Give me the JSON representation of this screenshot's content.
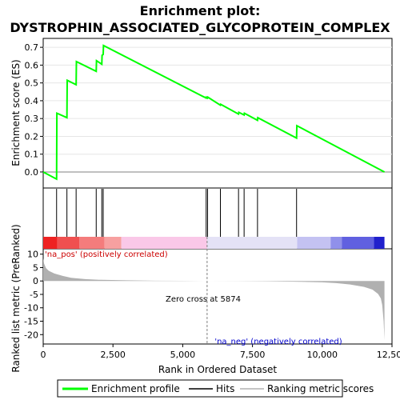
{
  "title_line1": "Enrichment plot:",
  "title_line2": "DYSTROPHIN_ASSOCIATED_GLYCOPROTEIN_COMPLEX",
  "colors": {
    "enrichment_line": "#00ff00",
    "hit_line": "#000000",
    "metric_fill": "#b0b0b0",
    "pos_label": "#cc0000",
    "neg_label": "#0000cc"
  },
  "legend": {
    "enrichment_profile": "Enrichment profile",
    "hits": "Hits",
    "ranking_metric": "Ranking metric scores"
  },
  "chart_data": [
    {
      "type": "line",
      "name": "enrichment-score-panel",
      "ylabel": "Enrichment score (ES)",
      "xlim": [
        0,
        12500
      ],
      "ylim": [
        -0.09,
        0.75
      ],
      "yticks": [
        0.0,
        0.1,
        0.2,
        0.3,
        0.4,
        0.5,
        0.6,
        0.7
      ],
      "ytick_labels": [
        "0.0",
        "0.1",
        "0.2",
        "0.3",
        "0.4",
        "0.5",
        "0.6",
        "0.7"
      ],
      "series": [
        {
          "x": [
            0,
            480,
            490,
            850,
            860,
            1180,
            1190,
            1900,
            1910,
            2100,
            2110,
            2150,
            2160,
            5840,
            5850,
            5890,
            5900,
            6350,
            6360,
            7000,
            7010,
            7200,
            7210,
            7680,
            7690,
            9080,
            9090,
            12230
          ],
          "y": [
            0.0,
            -0.04,
            0.33,
            0.305,
            0.515,
            0.49,
            0.62,
            0.565,
            0.625,
            0.605,
            0.655,
            0.66,
            0.71,
            0.415,
            0.42,
            0.415,
            0.42,
            0.375,
            0.38,
            0.325,
            0.335,
            0.32,
            0.33,
            0.29,
            0.305,
            0.19,
            0.26,
            0.0
          ]
        }
      ]
    },
    {
      "type": "scatter",
      "name": "hits-panel",
      "hit_positions": [
        480,
        850,
        1180,
        1900,
        2100,
        2150,
        5840,
        5890,
        6350,
        7000,
        7200,
        7680,
        9080
      ]
    },
    {
      "type": "area",
      "name": "ranked-metric-panel",
      "ylabel": "Ranked list metric (PreRanked)",
      "xlabel": "Rank in Ordered Dataset",
      "xlim": [
        0,
        12500
      ],
      "ylim": [
        -23.5,
        12
      ],
      "xticks": [
        0,
        2500,
        5000,
        7500,
        10000,
        12500
      ],
      "xtick_labels": [
        "0",
        "2,500",
        "5,000",
        "7,500",
        "10,000",
        "12,500"
      ],
      "yticks": [
        10,
        5,
        0,
        -5,
        -10,
        -15,
        -20
      ],
      "ytick_labels": [
        "10",
        "5",
        "0",
        "-5",
        "-10",
        "-15",
        "-20"
      ],
      "series": [
        {
          "x": [
            0,
            30,
            100,
            200,
            400,
            700,
            1000,
            1500,
            2000,
            3000,
            4000,
            5000,
            5874,
            7000,
            8000,
            9000,
            10000,
            10500,
            11000,
            11500,
            11800,
            12000,
            12100,
            12150,
            12200,
            12230
          ],
          "y": [
            8.5,
            6.5,
            4.8,
            3.8,
            2.8,
            1.9,
            1.2,
            0.7,
            0.45,
            0.25,
            0.12,
            0.05,
            0.0,
            -0.05,
            -0.12,
            -0.25,
            -0.5,
            -0.8,
            -1.3,
            -2.2,
            -3.2,
            -4.8,
            -6.5,
            -9.0,
            -15.0,
            -22.0
          ]
        }
      ],
      "zero_cross_text": "Zero cross at 5874",
      "zero_cross_rank": 5874,
      "pos_label": "'na_pos' (positively correlated)",
      "neg_label": "'na_neg' (negatively correlated)"
    }
  ],
  "colorbar": {
    "segments": [
      {
        "from": 0,
        "to": 500,
        "color": "#ee2222"
      },
      {
        "from": 500,
        "to": 1300,
        "color": "#f05050"
      },
      {
        "from": 1300,
        "to": 2200,
        "color": "#f47c7c"
      },
      {
        "from": 2200,
        "to": 2800,
        "color": "#f7a0a0"
      },
      {
        "from": 2800,
        "to": 5874,
        "color": "#fac8e8"
      },
      {
        "from": 5874,
        "to": 9100,
        "color": "#e4e2f6"
      },
      {
        "from": 9100,
        "to": 10300,
        "color": "#c4c2f2"
      },
      {
        "from": 10300,
        "to": 10700,
        "color": "#9090ea"
      },
      {
        "from": 10700,
        "to": 11850,
        "color": "#6060e0"
      },
      {
        "from": 11850,
        "to": 12230,
        "color": "#2020cc"
      }
    ]
  }
}
